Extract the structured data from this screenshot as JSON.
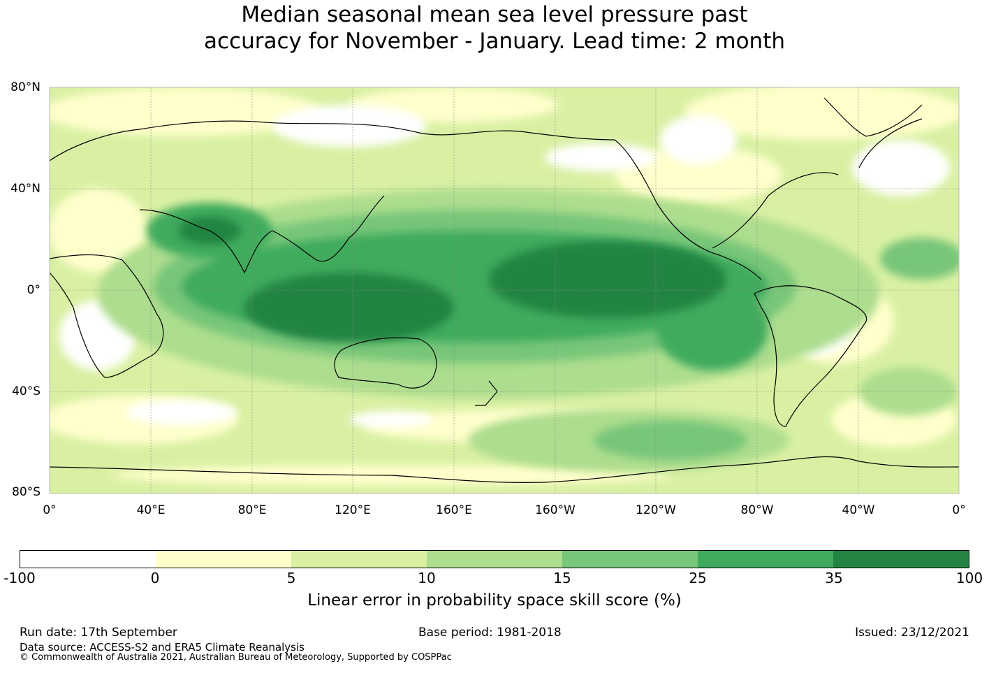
{
  "title": {
    "line1": "Median seasonal mean sea level pressure past",
    "line2": "accuracy for November - January. Lead time: 2 month"
  },
  "map": {
    "lat_labels": [
      "80°N",
      "40°N",
      "0°",
      "40°S",
      "80°S"
    ],
    "lon_labels": [
      "0°",
      "40°E",
      "80°E",
      "120°E",
      "160°E",
      "160°W",
      "120°W",
      "80°W",
      "40°W",
      "0°"
    ]
  },
  "colorbar": {
    "colors": [
      "#ffffff",
      "#ffffcc",
      "#d9f0a3",
      "#addd8e",
      "#78c679",
      "#41ab5d",
      "#238443"
    ],
    "ticks": [
      "-100",
      "0",
      "5",
      "10",
      "15",
      "25",
      "35",
      "100"
    ],
    "label": "Linear error in probability space skill score (%)"
  },
  "footer": {
    "run_date": "Run date: 17th September",
    "base_period": "Base period: 1981-2018",
    "issued": "Issued: 23/12/2021",
    "data_source": "Data source: ACCESS-S2 and ERA5 Climate Reanalysis",
    "copyright": "© Commonwealth of Australia 2021, Australian Bureau of Meteorology, Supported by COSPPac"
  }
}
